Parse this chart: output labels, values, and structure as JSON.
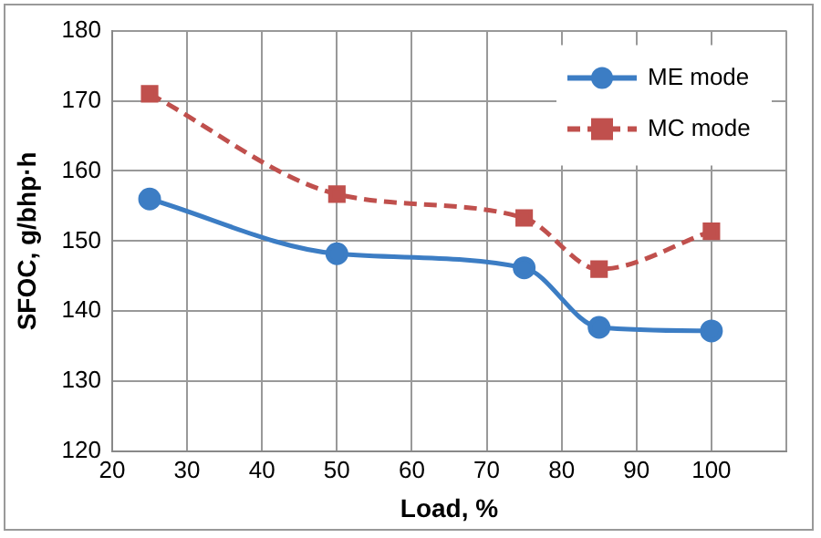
{
  "chart_data": {
    "type": "line",
    "xlabel": "Load, %",
    "ylabel": "SFOC, g/bhp·h",
    "x": [
      25,
      50,
      75,
      85,
      100
    ],
    "series": [
      {
        "name": "ME mode",
        "color": "#3c7dc4",
        "values": [
          156,
          148.2,
          146.2,
          137.7,
          137.2
        ],
        "marker": "circle",
        "line_style": "solid"
      },
      {
        "name": "MC mode",
        "color": "#c0504d",
        "values": [
          171,
          156.7,
          153.3,
          146,
          151.4
        ],
        "marker": "square",
        "line_style": "dashed"
      }
    ],
    "xlim": [
      20,
      110
    ],
    "xticks": [
      20,
      30,
      40,
      50,
      60,
      70,
      80,
      90,
      100,
      {
        "value": 110,
        "label": null
      }
    ],
    "ylim": [
      120,
      180
    ],
    "yticks": [
      120,
      130,
      140,
      150,
      160,
      170,
      180
    ],
    "grid": true,
    "legend": "top right"
  }
}
